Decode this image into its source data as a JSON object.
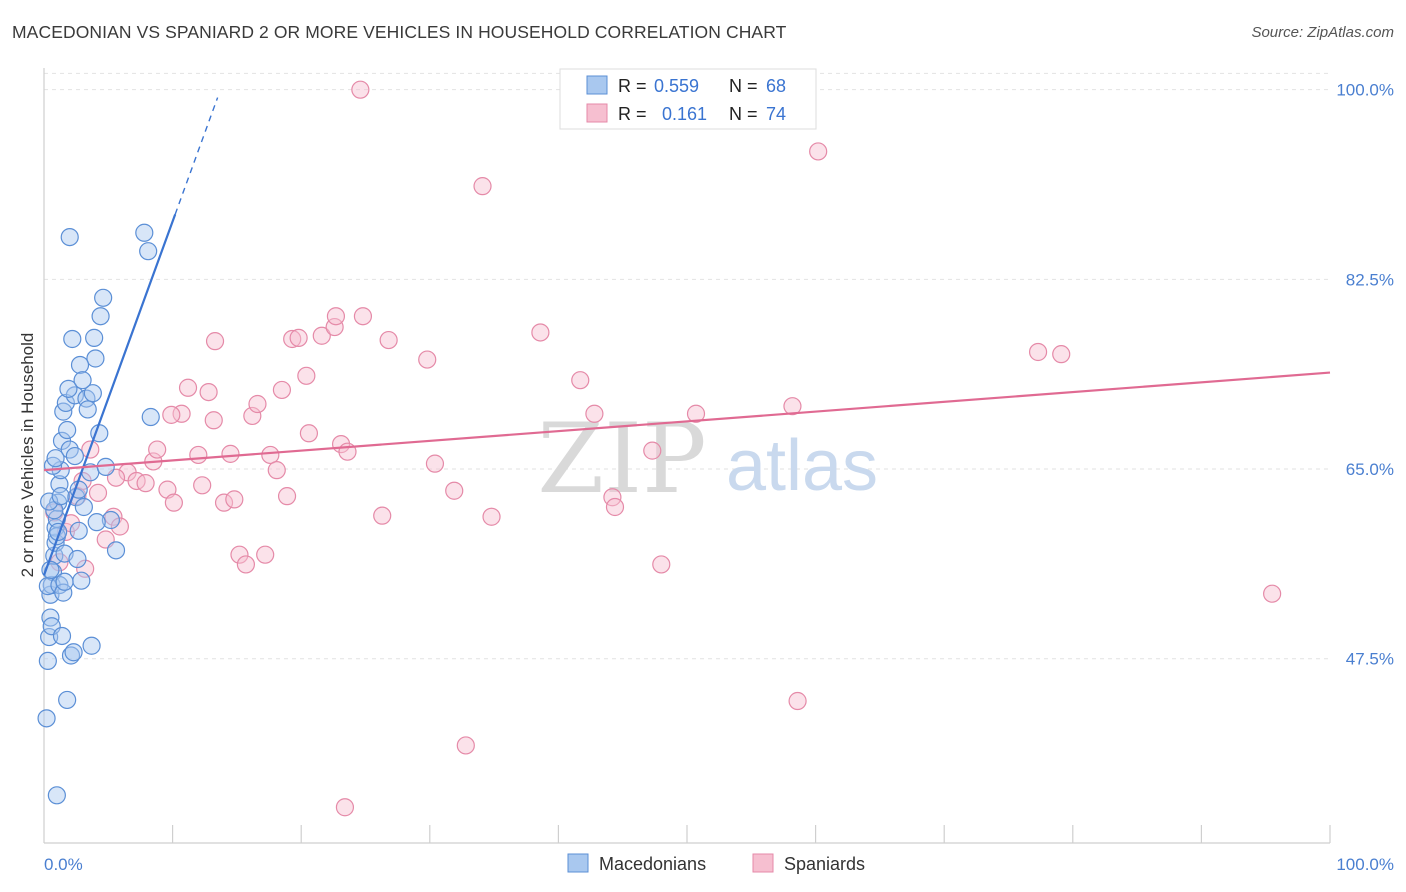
{
  "title": "MACEDONIAN VS SPANIARD 2 OR MORE VEHICLES IN HOUSEHOLD CORRELATION CHART",
  "source": "Source: ZipAtlas.com",
  "watermark": {
    "zip": "ZIP",
    "atlas": "atlas"
  },
  "colors": {
    "blue_fill": "#a9c8ef",
    "blue_stroke": "#5b8fd6",
    "blue_line": "#3a74d1",
    "pink_fill": "#f6bfd0",
    "pink_stroke": "#e58aa8",
    "pink_line": "#e06a92",
    "axis_text": "#4a7fd0",
    "grid": "#e2e2e2"
  },
  "legend_top": {
    "rows": [
      {
        "r_label": "R =",
        "r_value": "0.559",
        "n_label": "N =",
        "n_value": "68",
        "series": "blue"
      },
      {
        "r_label": "R =",
        "r_value": "0.161",
        "n_label": "N =",
        "n_value": "74",
        "series": "pink"
      }
    ]
  },
  "legend_bottom": [
    {
      "label": "Macedonians",
      "series": "blue"
    },
    {
      "label": "Spaniards",
      "series": "pink"
    }
  ],
  "chart_data": {
    "type": "scatter",
    "title": "MACEDONIAN VS SPANIARD 2 OR MORE VEHICLES IN HOUSEHOLD CORRELATION CHART",
    "xlabel": "",
    "ylabel": "2 or more Vehicles in Household",
    "xlim": [
      0,
      100
    ],
    "ylim": [
      30.5,
      102.0
    ],
    "y_ticks": [
      47.5,
      65.0,
      82.5,
      100.0
    ],
    "y_tick_labels": [
      "47.5%",
      "65.0%",
      "82.5%",
      "100.0%"
    ],
    "x_tick_labels": [
      "0.0%",
      "100.0%"
    ],
    "series": [
      {
        "name": "Macedonians",
        "color": "blue",
        "trend": {
          "x0": 0.0,
          "y0": 55.2,
          "x1": 10.2,
          "y1": 88.5,
          "dash_to_x": 13.5
        },
        "points": [
          [
            0.2,
            42.0
          ],
          [
            0.3,
            47.3
          ],
          [
            0.4,
            49.5
          ],
          [
            0.5,
            51.3
          ],
          [
            0.5,
            53.4
          ],
          [
            0.6,
            54.3
          ],
          [
            0.7,
            55.5
          ],
          [
            0.8,
            57.0
          ],
          [
            0.9,
            58.2
          ],
          [
            0.9,
            59.6
          ],
          [
            1.0,
            60.4
          ],
          [
            1.1,
            61.9
          ],
          [
            1.2,
            63.6
          ],
          [
            1.3,
            64.9
          ],
          [
            1.4,
            67.6
          ],
          [
            1.5,
            70.3
          ],
          [
            1.7,
            71.1
          ],
          [
            1.8,
            68.6
          ],
          [
            2.0,
            66.8
          ],
          [
            2.2,
            77.0
          ],
          [
            2.4,
            71.8
          ],
          [
            2.5,
            62.4
          ],
          [
            2.7,
            59.3
          ],
          [
            2.9,
            54.7
          ],
          [
            3.1,
            61.5
          ],
          [
            3.3,
            71.5
          ],
          [
            3.6,
            64.7
          ],
          [
            3.8,
            72.0
          ],
          [
            4.0,
            75.2
          ],
          [
            4.3,
            68.3
          ],
          [
            4.6,
            80.8
          ],
          [
            4.8,
            65.2
          ],
          [
            5.2,
            60.3
          ],
          [
            5.6,
            57.5
          ],
          [
            0.3,
            54.2
          ],
          [
            0.6,
            50.5
          ],
          [
            0.8,
            61.2
          ],
          [
            1.0,
            58.8
          ],
          [
            1.2,
            54.3
          ],
          [
            1.4,
            49.6
          ],
          [
            1.6,
            57.2
          ],
          [
            1.8,
            43.7
          ],
          [
            2.1,
            47.8
          ],
          [
            2.3,
            48.1
          ],
          [
            2.6,
            56.7
          ],
          [
            1.9,
            72.4
          ],
          [
            2.8,
            74.6
          ],
          [
            3.0,
            73.2
          ],
          [
            3.4,
            70.5
          ],
          [
            0.4,
            62.0
          ],
          [
            0.7,
            65.3
          ],
          [
            1.1,
            59.2
          ],
          [
            1.5,
            53.6
          ],
          [
            2.0,
            86.4
          ],
          [
            3.7,
            48.7
          ],
          [
            7.8,
            86.8
          ],
          [
            8.1,
            85.1
          ],
          [
            8.3,
            69.8
          ],
          [
            4.1,
            60.1
          ],
          [
            1.0,
            34.9
          ],
          [
            0.5,
            55.7
          ],
          [
            1.3,
            62.5
          ],
          [
            2.4,
            66.2
          ],
          [
            3.9,
            77.1
          ],
          [
            4.4,
            79.1
          ],
          [
            0.9,
            66.0
          ],
          [
            1.6,
            54.6
          ],
          [
            2.7,
            63.1
          ]
        ]
      },
      {
        "name": "Spaniards",
        "color": "pink",
        "trend": {
          "x0": 0.0,
          "y0": 64.9,
          "x1": 100.0,
          "y1": 73.9
        },
        "points": [
          [
            0.8,
            61.0
          ],
          [
            1.2,
            56.4
          ],
          [
            1.7,
            59.2
          ],
          [
            2.1,
            60.0
          ],
          [
            2.6,
            62.5
          ],
          [
            3.0,
            63.9
          ],
          [
            3.6,
            66.8
          ],
          [
            4.2,
            62.8
          ],
          [
            4.8,
            58.5
          ],
          [
            5.4,
            60.6
          ],
          [
            5.9,
            59.7
          ],
          [
            6.5,
            64.7
          ],
          [
            7.2,
            63.9
          ],
          [
            7.9,
            63.7
          ],
          [
            8.5,
            65.7
          ],
          [
            8.8,
            66.8
          ],
          [
            9.6,
            63.1
          ],
          [
            10.1,
            61.9
          ],
          [
            10.7,
            70.1
          ],
          [
            11.2,
            72.5
          ],
          [
            12.0,
            66.3
          ],
          [
            12.3,
            63.5
          ],
          [
            12.8,
            72.1
          ],
          [
            13.3,
            76.8
          ],
          [
            14.0,
            61.9
          ],
          [
            14.5,
            66.4
          ],
          [
            14.8,
            62.2
          ],
          [
            15.2,
            57.1
          ],
          [
            15.7,
            56.2
          ],
          [
            16.2,
            69.9
          ],
          [
            16.6,
            71.0
          ],
          [
            17.2,
            57.1
          ],
          [
            17.6,
            66.3
          ],
          [
            18.1,
            64.9
          ],
          [
            18.5,
            72.3
          ],
          [
            18.9,
            62.5
          ],
          [
            19.3,
            77.0
          ],
          [
            19.8,
            77.1
          ],
          [
            20.6,
            68.3
          ],
          [
            20.4,
            73.6
          ],
          [
            21.6,
            77.3
          ],
          [
            22.6,
            78.1
          ],
          [
            22.7,
            79.1
          ],
          [
            23.1,
            67.3
          ],
          [
            23.6,
            66.6
          ],
          [
            24.6,
            100.0
          ],
          [
            24.8,
            79.1
          ],
          [
            26.3,
            60.7
          ],
          [
            26.8,
            76.9
          ],
          [
            29.8,
            75.1
          ],
          [
            30.4,
            65.5
          ],
          [
            31.9,
            63.0
          ],
          [
            34.1,
            91.1
          ],
          [
            34.8,
            60.6
          ],
          [
            38.6,
            77.6
          ],
          [
            41.7,
            73.2
          ],
          [
            42.8,
            70.1
          ],
          [
            44.2,
            62.4
          ],
          [
            47.3,
            66.7
          ],
          [
            48.0,
            56.2
          ],
          [
            50.7,
            70.1
          ],
          [
            58.2,
            70.8
          ],
          [
            58.6,
            43.6
          ],
          [
            60.2,
            94.3
          ],
          [
            77.3,
            75.8
          ],
          [
            79.1,
            75.6
          ],
          [
            95.5,
            53.5
          ],
          [
            32.8,
            39.5
          ],
          [
            23.4,
            33.8
          ],
          [
            44.4,
            61.5
          ],
          [
            9.9,
            70.0
          ],
          [
            5.6,
            64.2
          ],
          [
            13.2,
            69.5
          ],
          [
            3.2,
            55.8
          ]
        ]
      }
    ]
  }
}
